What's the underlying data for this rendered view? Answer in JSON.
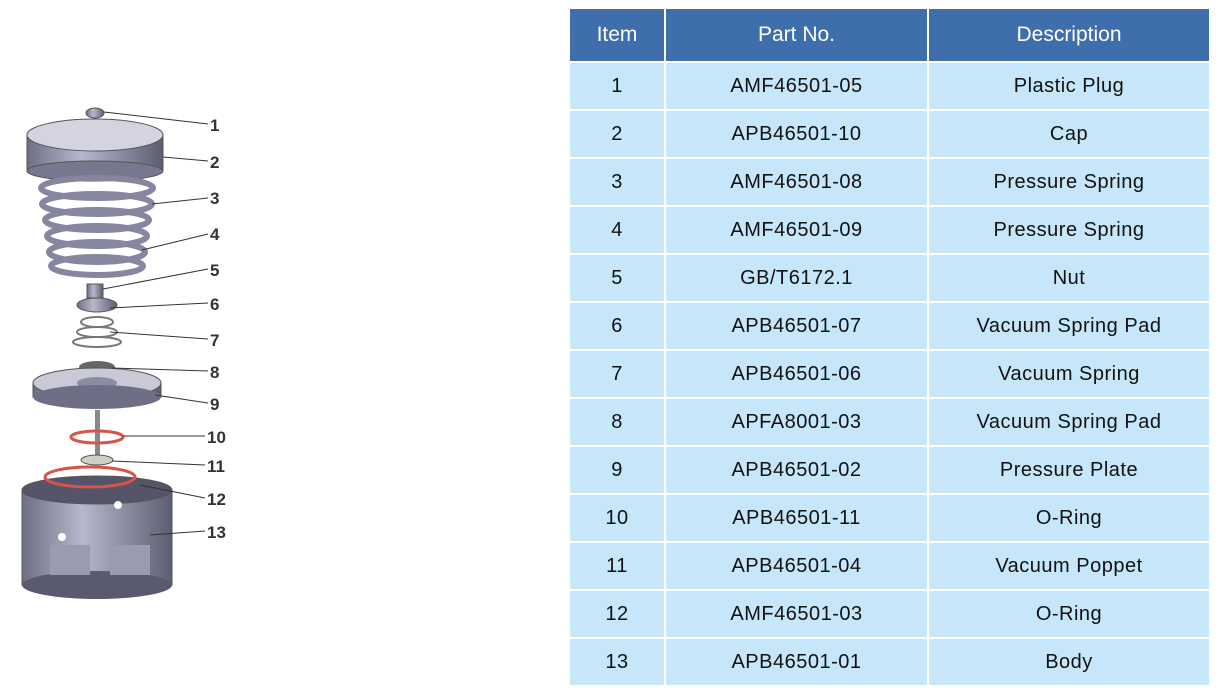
{
  "diagram": {
    "labels": [
      "1",
      "2",
      "3",
      "4",
      "5",
      "6",
      "7",
      "8",
      "9",
      "10",
      "11",
      "12",
      "13"
    ],
    "colors": {
      "metal": "#8f8fa6",
      "oring": "#d9534a"
    }
  },
  "table": {
    "headers": [
      "Item",
      "Part No.",
      "Description"
    ],
    "rows": [
      {
        "item": "1",
        "part": "AMF46501-05",
        "desc": "Plastic Plug"
      },
      {
        "item": "2",
        "part": "APB46501-10",
        "desc": "Cap"
      },
      {
        "item": "3",
        "part": "AMF46501-08",
        "desc": "Pressure Spring"
      },
      {
        "item": "4",
        "part": "AMF46501-09",
        "desc": "Pressure Spring"
      },
      {
        "item": "5",
        "part": "GB/T6172.1",
        "desc": "Nut"
      },
      {
        "item": "6",
        "part": "APB46501-07",
        "desc": "Vacuum Spring Pad"
      },
      {
        "item": "7",
        "part": "APB46501-06",
        "desc": "Vacuum Spring"
      },
      {
        "item": "8",
        "part": "APFA8001-03",
        "desc": "Vacuum Spring Pad"
      },
      {
        "item": "9",
        "part": "APB46501-02",
        "desc": "Pressure Plate"
      },
      {
        "item": "10",
        "part": "APB46501-11",
        "desc": "O-Ring"
      },
      {
        "item": "11",
        "part": "APB46501-04",
        "desc": "Vacuum Poppet"
      },
      {
        "item": "12",
        "part": "AMF46501-03",
        "desc": "O-Ring"
      },
      {
        "item": "13",
        "part": "APB46501-01",
        "desc": "Body"
      }
    ],
    "colors": {
      "header": "#3f6eac",
      "row": "#c6e6f9"
    }
  }
}
